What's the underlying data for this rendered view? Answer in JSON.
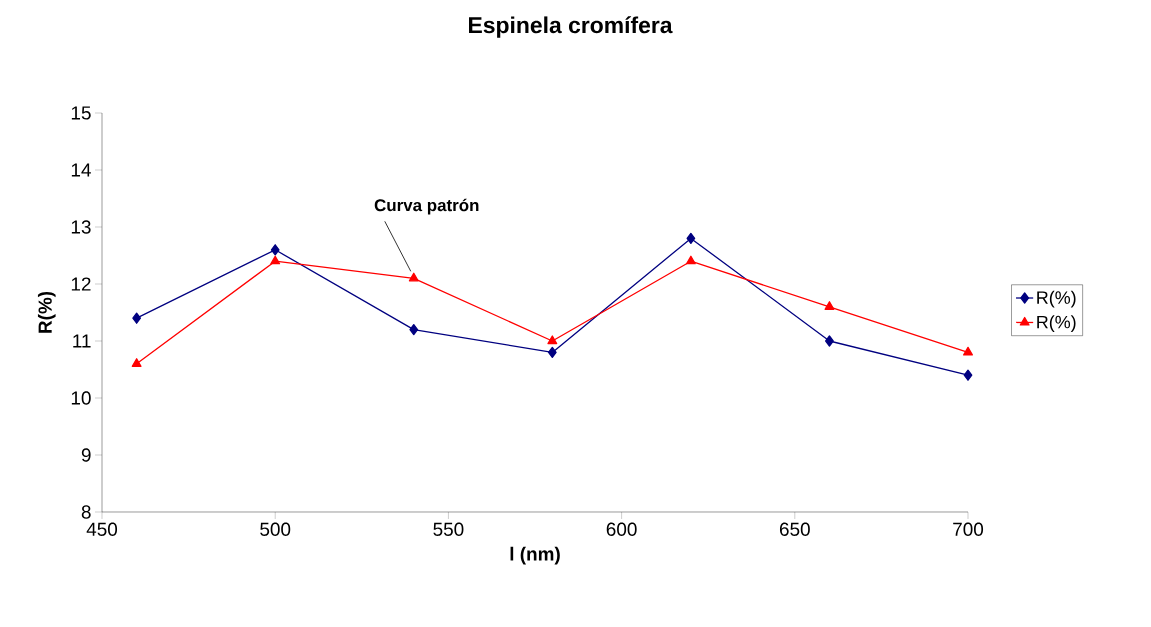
{
  "chart_data": {
    "type": "line",
    "title": "Espinela cromífera",
    "xlabel": "l (nm)",
    "ylabel": "R(%)",
    "x": [
      460,
      500,
      540,
      580,
      620,
      660,
      700
    ],
    "series": [
      {
        "name": "R(%)",
        "color": "#000080",
        "marker": "diamond",
        "values": [
          11.4,
          12.6,
          11.2,
          10.8,
          12.8,
          11.0,
          10.4
        ]
      },
      {
        "name": "R(%)",
        "color": "#ff0000",
        "marker": "triangle",
        "values": [
          10.6,
          12.4,
          12.1,
          11.0,
          12.4,
          11.6,
          10.8
        ]
      }
    ],
    "xlim": [
      450,
      700
    ],
    "xticks": [
      450,
      500,
      550,
      600,
      650,
      700
    ],
    "ylim": [
      8,
      15
    ],
    "yticks": [
      8,
      9,
      10,
      11,
      12,
      13,
      14,
      15
    ],
    "annotations": [
      {
        "text": "Curva patrón",
        "x": 540,
        "y": 12.1
      }
    ],
    "legend": "right",
    "grid": false,
    "line_style": "solid"
  }
}
